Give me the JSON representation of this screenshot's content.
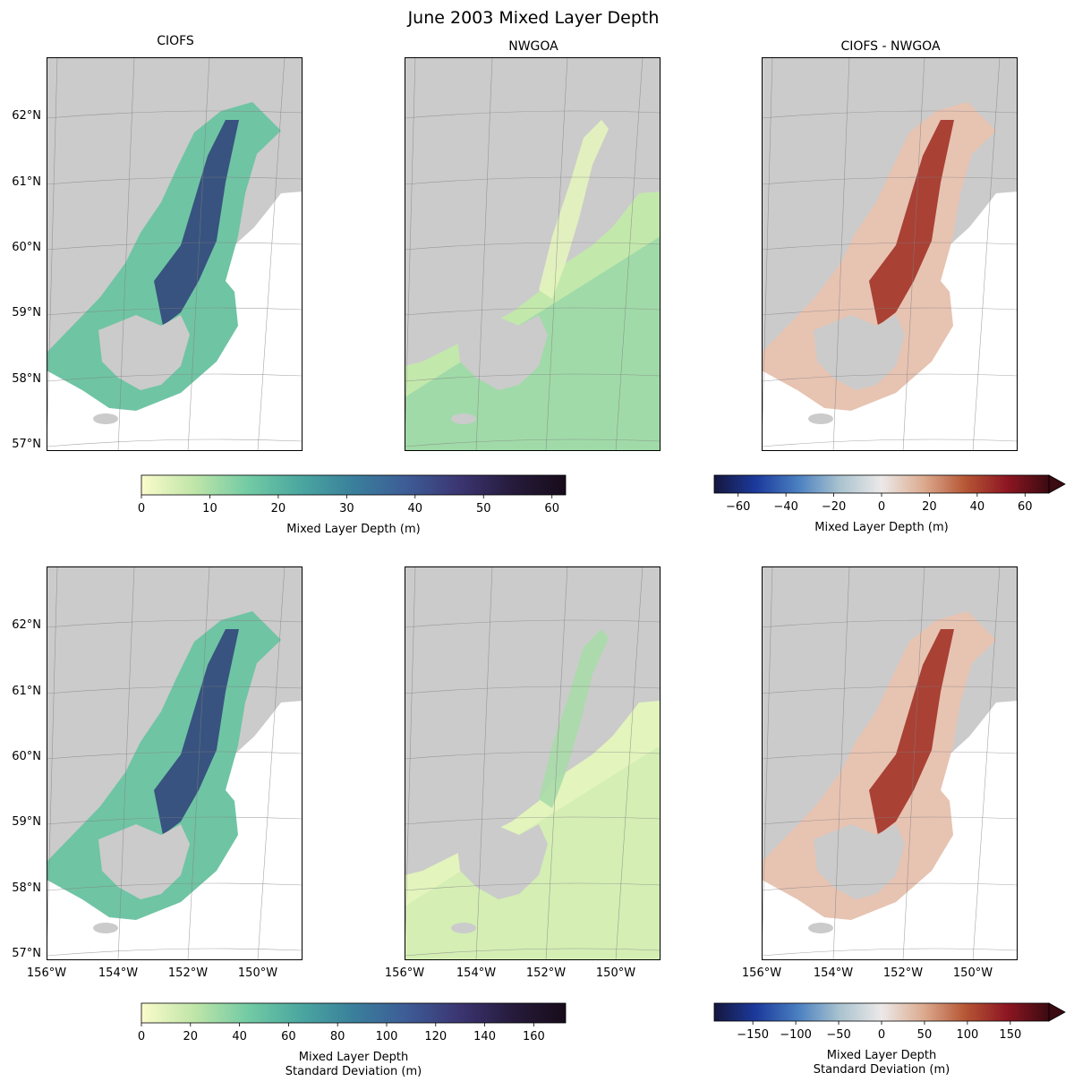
{
  "figure_title": "June 2003 Mixed Layer Depth",
  "panel_titles": [
    "CIOFS",
    "NWGOA",
    "CIOFS - NWGOA"
  ],
  "lat_ticks": [
    "62°N",
    "61°N",
    "60°N",
    "59°N",
    "58°N",
    "57°N"
  ],
  "lon_ticks": [
    "156°W",
    "154°W",
    "152°W",
    "150°W"
  ],
  "colors": {
    "land": "#cbcbcb",
    "grid": "#808080",
    "deep_cmap": [
      "#fbfbcb",
      "#bfe5a8",
      "#73cba4",
      "#4aa79f",
      "#3a7f9c",
      "#3d5c96",
      "#3b3572",
      "#261b3b",
      "#170b1a"
    ],
    "diff_cmap": [
      "#15173e",
      "#1c3a9c",
      "#4a7fc0",
      "#a9c3cf",
      "#ece9e8",
      "#dcab90",
      "#b65635",
      "#8d1622",
      "#3c0a11"
    ]
  },
  "chart_data": [
    {
      "type": "heatmap",
      "rows": [
        {
          "colorbars": [
            {
              "id": "mean",
              "label": [
                "Mixed Layer Depth (m)"
              ],
              "ticks": [
                "0",
                "10",
                "20",
                "30",
                "40",
                "50",
                "60"
              ],
              "range": [
                0,
                62
              ],
              "cmap": "deep",
              "extend": "neither"
            },
            {
              "id": "mean-diff",
              "label": [
                "Mixed Layer Depth (m)"
              ],
              "ticks": [
                "−60",
                "−40",
                "−20",
                "0",
                "20",
                "40",
                "60"
              ],
              "range": [
                -70,
                70
              ],
              "cmap": "diff",
              "extend": "max"
            }
          ]
        },
        {
          "colorbars": [
            {
              "id": "std",
              "label": [
                "Mixed Layer Depth",
                "Standard Deviation (m)"
              ],
              "ticks": [
                "0",
                "20",
                "40",
                "60",
                "80",
                "100",
                "120",
                "140",
                "160"
              ],
              "range": [
                0,
                173
              ],
              "cmap": "deep",
              "extend": "neither"
            },
            {
              "id": "std-diff",
              "label": [
                "Mixed Layer Depth",
                "Standard Deviation (m)"
              ],
              "ticks": [
                "−150",
                "−100",
                "−50",
                "0",
                "50",
                "100",
                "150"
              ],
              "range": [
                -195,
                195
              ],
              "cmap": "diff",
              "extend": "max"
            }
          ]
        }
      ],
      "map_extent": {
        "lon": [
          -156,
          -149
        ],
        "lat": [
          56,
          62
        ]
      }
    }
  ]
}
